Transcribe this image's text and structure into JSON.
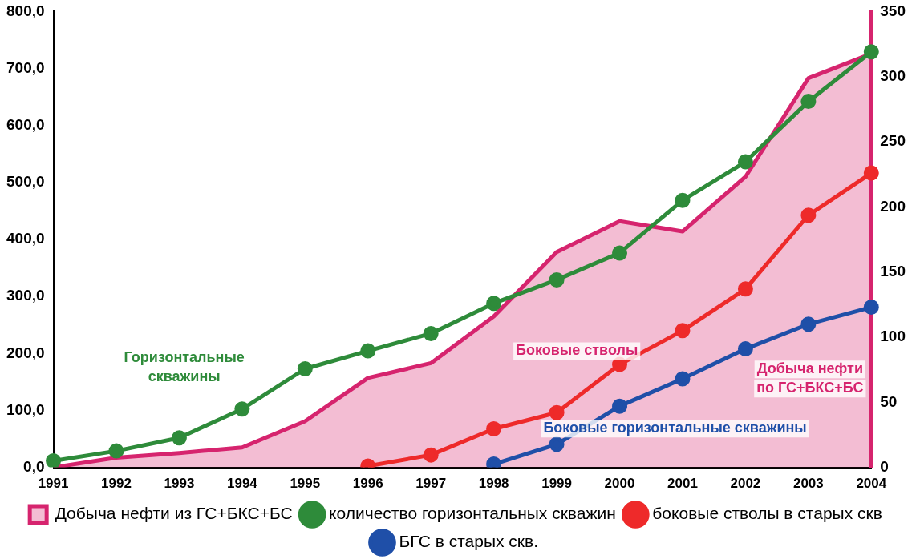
{
  "chart_data": {
    "type": "line",
    "categories": [
      "1991",
      "1992",
      "1993",
      "1994",
      "1995",
      "1996",
      "1997",
      "1998",
      "1999",
      "2000",
      "2001",
      "2002",
      "2003",
      "2004"
    ],
    "series": [
      {
        "name": "Добыча нефти из ГС+БКС+БС",
        "type": "area",
        "marker": "none",
        "color": "#d6246e",
        "values": [
          0,
          17,
          25,
          35,
          81,
          157,
          183,
          265,
          378,
          432,
          414,
          510,
          683,
          726
        ]
      },
      {
        "name": "количество горизонтальных скважин",
        "color": "#2e8b3a",
        "axis": "y2",
        "values": [
          5,
          12.6,
          22.7,
          44.8,
          75.7,
          89.5,
          102.8,
          126,
          144,
          164.6,
          205,
          234.6,
          281,
          319
        ]
      },
      {
        "name": "боковые стволы в старых скв",
        "color": "#ee2a2a",
        "axis": "y2",
        "values": [
          null,
          null,
          null,
          null,
          null,
          1,
          9.5,
          29.6,
          42,
          79,
          105,
          137,
          193.6,
          226
        ]
      },
      {
        "name": "БГС в старых скв.",
        "color": "#1f4fa8",
        "axis": "y2",
        "values": [
          null,
          null,
          null,
          null,
          null,
          null,
          null,
          2.5,
          17.7,
          47,
          68,
          91,
          110,
          123
        ]
      }
    ],
    "ylim": [
      0,
      800
    ],
    "yticks": [
      {
        "value": 0,
        "label": "0,0"
      },
      {
        "value": 100,
        "label": "100,0"
      },
      {
        "value": 200,
        "label": "200,0"
      },
      {
        "value": 300,
        "label": "300,0"
      },
      {
        "value": 400,
        "label": "400,0"
      },
      {
        "value": 500,
        "label": "500,0"
      },
      {
        "value": 600,
        "label": "600,0"
      },
      {
        "value": 700,
        "label": "700,0"
      },
      {
        "value": 800,
        "label": "800,0"
      }
    ],
    "y2lim": [
      0,
      350
    ],
    "y2ticks": [
      0,
      50,
      100,
      150,
      200,
      250,
      300,
      350
    ],
    "marker": "circle",
    "grid": false,
    "legend": "bottom",
    "annotations": [
      "Горизонтальные\nскважины",
      "Боковые стволы",
      "Добыча нефти\nпо ГС+БКС+БС",
      "Боковые горизонтальные скважины"
    ]
  }
}
